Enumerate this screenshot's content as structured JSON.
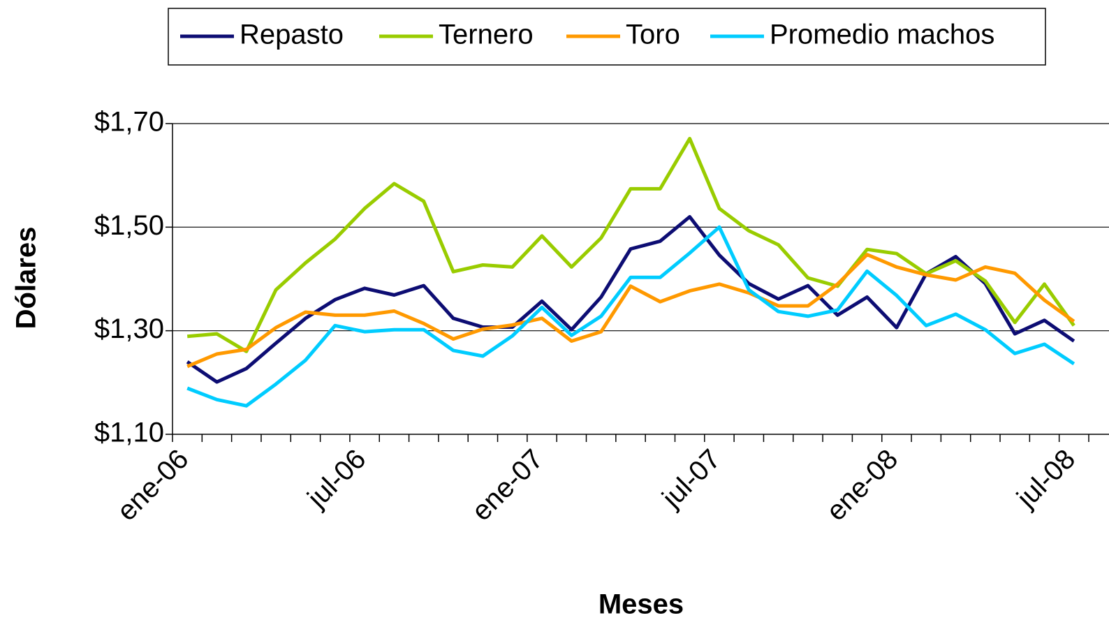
{
  "chart_data": {
    "type": "line",
    "x_label": "Meses",
    "y_label": "Dólares",
    "categories": [
      "ene-06",
      null,
      null,
      null,
      null,
      null,
      "jul-06",
      null,
      null,
      null,
      null,
      null,
      "ene-07",
      null,
      null,
      null,
      null,
      null,
      "jul-07",
      null,
      null,
      null,
      null,
      null,
      "ene-08",
      null,
      null,
      null,
      null,
      null,
      "jul-08"
    ],
    "ylim": [
      1.1,
      1.7
    ],
    "yticks": [
      {
        "value": 1.1,
        "label": "$1,10"
      },
      {
        "value": 1.3,
        "label": "$1,30"
      },
      {
        "value": 1.5,
        "label": "$1,50"
      },
      {
        "value": 1.7,
        "label": "$1,70"
      }
    ],
    "grid": true,
    "legend": "top",
    "series": [
      {
        "name": "Repasto",
        "color": "#0d0d73",
        "values": [
          1.24,
          1.201,
          1.227,
          1.276,
          1.324,
          1.36,
          1.382,
          1.369,
          1.387,
          1.324,
          1.307,
          1.307,
          1.357,
          1.302,
          1.365,
          1.458,
          1.473,
          1.52,
          1.446,
          1.391,
          1.361,
          1.387,
          1.33,
          1.365,
          1.306,
          1.41,
          1.443,
          1.391,
          1.294,
          1.32,
          1.28
        ]
      },
      {
        "name": "Ternero",
        "color": "#99cc00",
        "values": [
          1.289,
          1.294,
          1.26,
          1.379,
          1.431,
          1.477,
          1.536,
          1.584,
          1.55,
          1.414,
          1.427,
          1.423,
          1.483,
          1.423,
          1.479,
          1.574,
          1.574,
          1.671,
          1.536,
          1.493,
          1.466,
          1.402,
          1.386,
          1.457,
          1.449,
          1.41,
          1.435,
          1.396,
          1.316,
          1.39,
          1.31
        ]
      },
      {
        "name": "Toro",
        "color": "#ff9900",
        "values": [
          1.231,
          1.255,
          1.264,
          1.306,
          1.336,
          1.33,
          1.33,
          1.338,
          1.314,
          1.284,
          1.303,
          1.311,
          1.324,
          1.28,
          1.298,
          1.386,
          1.356,
          1.377,
          1.39,
          1.373,
          1.348,
          1.348,
          1.39,
          1.447,
          1.423,
          1.408,
          1.398,
          1.423,
          1.411,
          1.359,
          1.318
        ]
      },
      {
        "name": "Promedio machos",
        "color": "#00ccff",
        "values": [
          1.189,
          1.167,
          1.155,
          1.197,
          1.243,
          1.31,
          1.298,
          1.302,
          1.302,
          1.262,
          1.251,
          1.29,
          1.345,
          1.291,
          1.328,
          1.403,
          1.403,
          1.45,
          1.5,
          1.379,
          1.337,
          1.328,
          1.34,
          1.415,
          1.368,
          1.31,
          1.332,
          1.302,
          1.256,
          1.274,
          1.236
        ]
      }
    ]
  }
}
